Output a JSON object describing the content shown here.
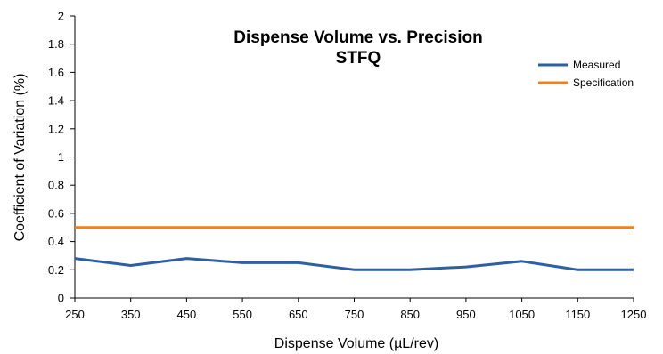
{
  "chart_data": {
    "type": "line",
    "title": "Dispense Volume vs. Precision",
    "subtitle": "STFQ",
    "xlabel": "Dispense Volume (µL/rev)",
    "ylabel": "Coefficient of Variation (%)",
    "x": [
      250,
      350,
      450,
      550,
      650,
      750,
      850,
      950,
      1050,
      1150,
      1250
    ],
    "xlim": [
      250,
      1250
    ],
    "ylim": [
      0,
      2
    ],
    "yticks": [
      "0",
      "0.2",
      "0.4",
      "0.6",
      "0.8",
      "1",
      "1.2",
      "1.4",
      "1.6",
      "1.8",
      "2"
    ],
    "grid": false,
    "legend_position": "top-right",
    "series": [
      {
        "name": "Measured",
        "color": "#2e5fa3",
        "values": [
          0.28,
          0.23,
          0.28,
          0.25,
          0.25,
          0.2,
          0.2,
          0.22,
          0.26,
          0.2,
          0.2
        ]
      },
      {
        "name": "Specification",
        "color": "#f07f1e",
        "values": [
          0.5,
          0.5,
          0.5,
          0.5,
          0.5,
          0.5,
          0.5,
          0.5,
          0.5,
          0.5,
          0.5
        ]
      }
    ]
  }
}
